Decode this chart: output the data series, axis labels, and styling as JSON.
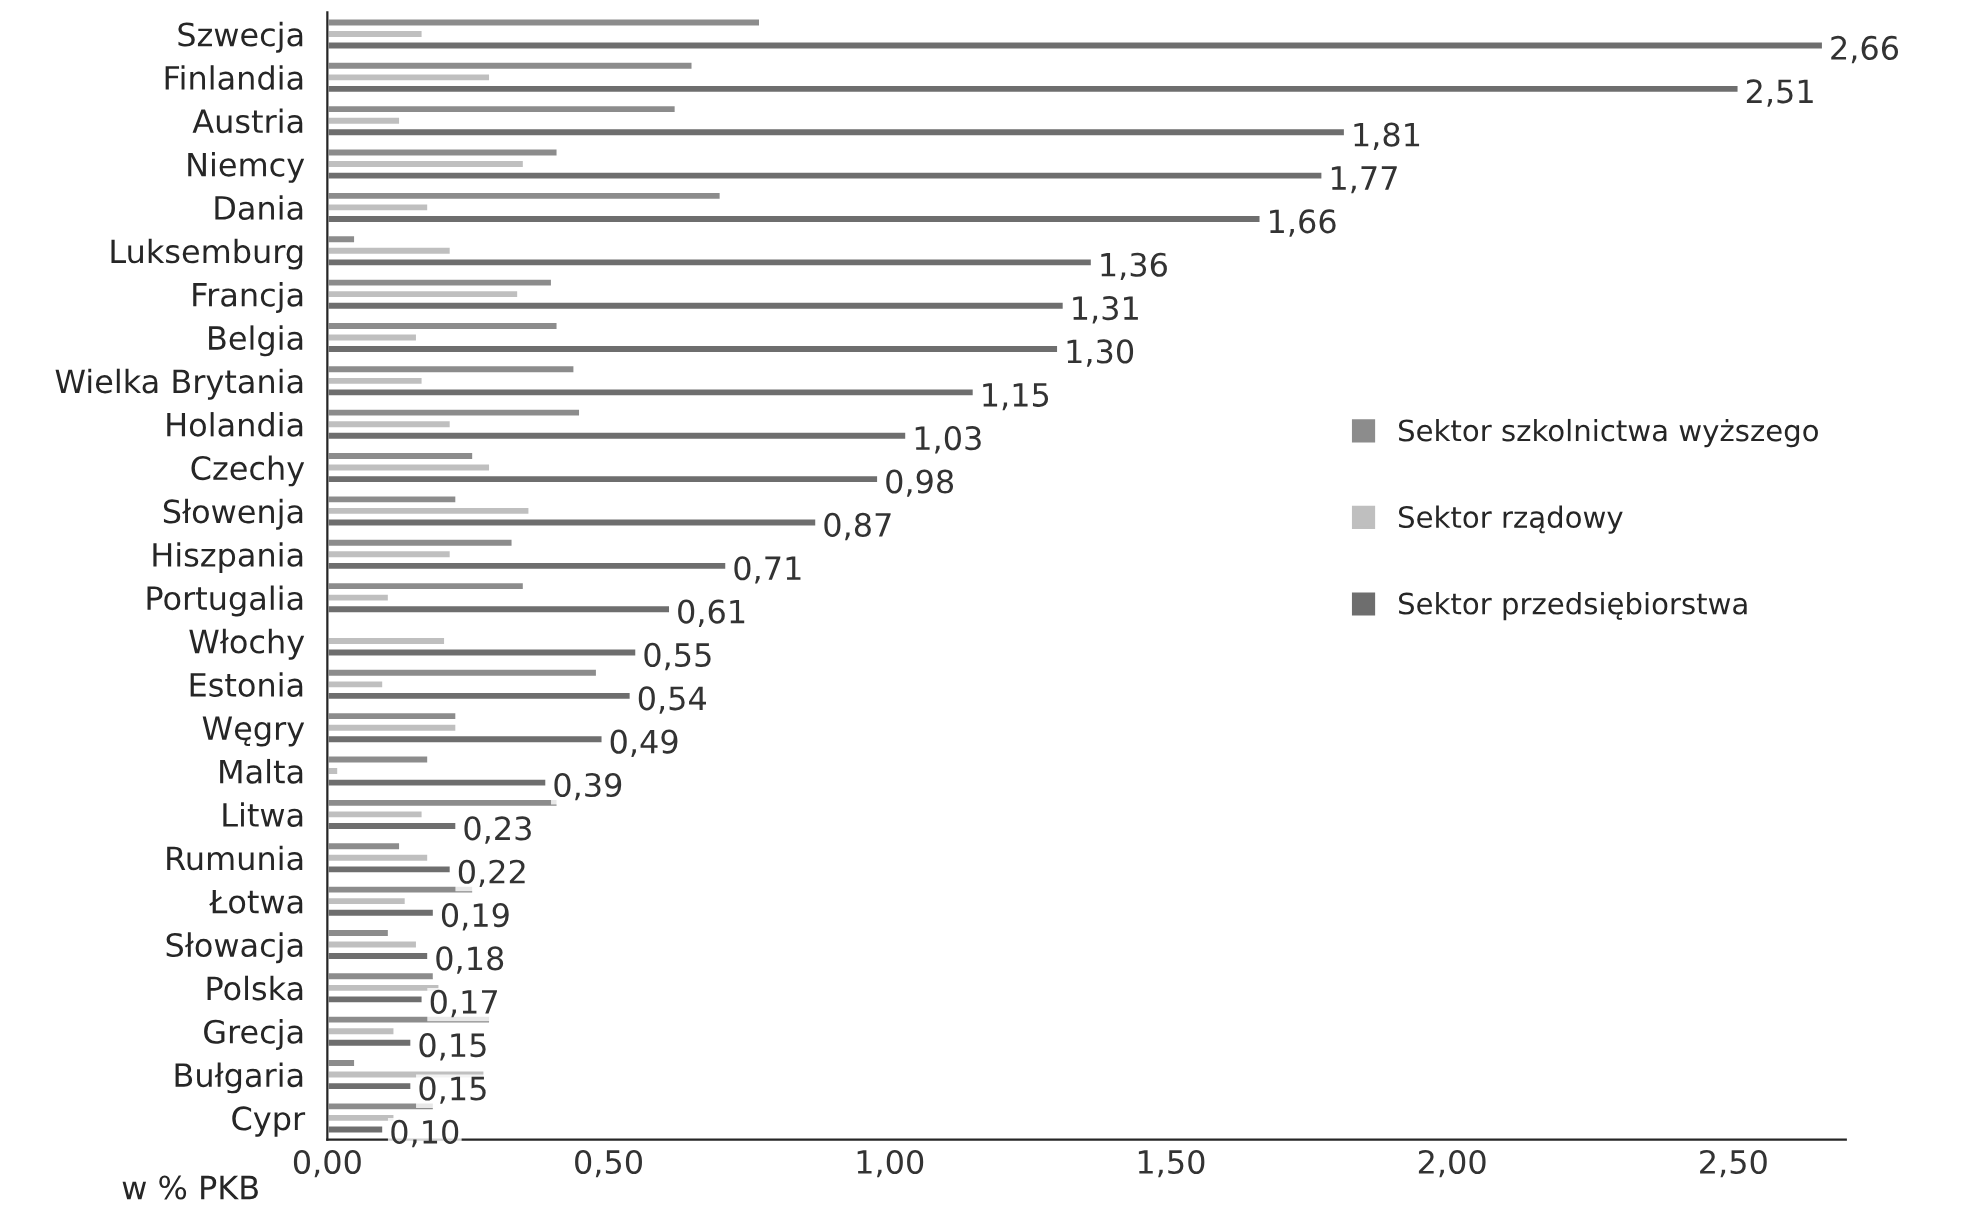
{
  "chart_data": {
    "type": "bar",
    "orientation": "horizontal",
    "xlabel": "w % PKB",
    "categories": [
      "Szwecja",
      "Finlandia",
      "Austria",
      "Niemcy",
      "Dania",
      "Luksemburg",
      "Francja",
      "Belgia",
      "Wielka Brytania",
      "Holandia",
      "Czechy",
      "Słowenja",
      "Hiszpania",
      "Portugalia",
      "Włochy",
      "Estonia",
      "Węgry",
      "Malta",
      "Litwa",
      "Rumunia",
      "Łotwa",
      "Słowacja",
      "Polska",
      "Grecja",
      "Bułgaria",
      "Cypr"
    ],
    "series": [
      {
        "name": "Sektor szkolnictwa wyższego",
        "color": "#8c8c8c",
        "values": [
          0.77,
          0.65,
          0.62,
          0.41,
          0.7,
          0.05,
          0.4,
          0.41,
          0.44,
          0.45,
          0.26,
          0.23,
          0.33,
          0.35,
          null,
          0.48,
          0.23,
          0.18,
          0.41,
          0.13,
          0.26,
          0.11,
          0.19,
          0.29,
          0.05,
          0.19
        ]
      },
      {
        "name": "Sektor rządowy",
        "color": "#bfbfbf",
        "values": [
          0.17,
          0.29,
          0.13,
          0.35,
          0.18,
          0.22,
          0.34,
          0.16,
          0.17,
          0.22,
          0.29,
          0.36,
          0.22,
          0.11,
          0.21,
          0.1,
          0.23,
          0.02,
          0.17,
          0.18,
          0.14,
          0.16,
          0.2,
          0.12,
          0.28,
          0.12
        ]
      },
      {
        "name": "Sektor przedsiębiorstwa",
        "color": "#6e6e6e",
        "values": [
          2.66,
          2.51,
          1.81,
          1.77,
          1.66,
          1.36,
          1.31,
          1.3,
          1.15,
          1.03,
          0.98,
          0.87,
          0.71,
          0.61,
          0.55,
          0.54,
          0.49,
          0.39,
          0.23,
          0.22,
          0.19,
          0.18,
          0.17,
          0.15,
          0.15,
          0.1
        ],
        "value_labels": [
          "2,66",
          "2,51",
          "1,81",
          "1,77",
          "1,66",
          "1,36",
          "1,31",
          "1,30",
          "1,15",
          "1,03",
          "0,98",
          "0,87",
          "0,71",
          "0,61",
          "0,55",
          "0,54",
          "0,49",
          "0,39",
          "0,23",
          "0,22",
          "0,19",
          "0,18",
          "0,17",
          "0,15",
          "0,15",
          "0,10"
        ]
      }
    ],
    "xlim": [
      0,
      2.7
    ],
    "xticks": [
      {
        "value": 0,
        "label": "0,00"
      },
      {
        "value": 0.5,
        "label": "0,50"
      },
      {
        "value": 1.0,
        "label": "1,00"
      },
      {
        "value": 1.5,
        "label": "1,50"
      },
      {
        "value": 2.0,
        "label": "2,00"
      },
      {
        "value": 2.5,
        "label": "2,50"
      }
    ],
    "grid": false,
    "legend": "center right"
  }
}
